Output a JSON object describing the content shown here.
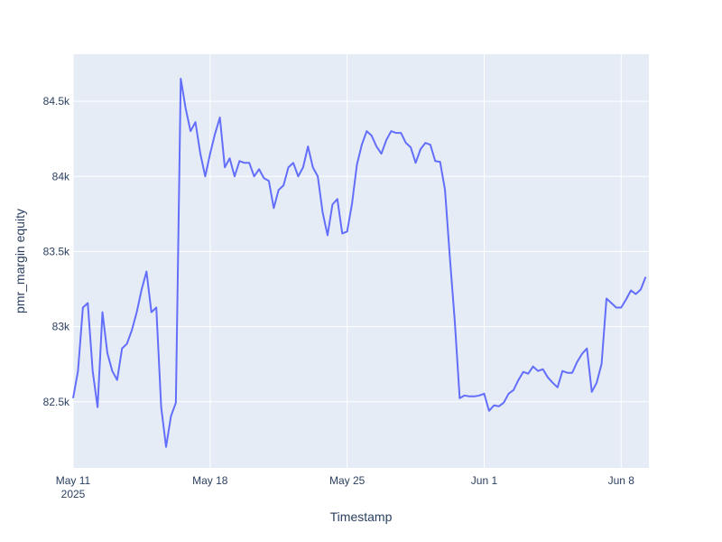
{
  "chart_data": {
    "type": "line",
    "x_label": "Timestamp",
    "y_label": "pmr_margin equity",
    "x": [
      "2025-05-11 00:00",
      "2025-05-11 06:00",
      "2025-05-11 12:00",
      "2025-05-11 18:00",
      "2025-05-12 00:00",
      "2025-05-12 06:00",
      "2025-05-12 12:00",
      "2025-05-12 18:00",
      "2025-05-13 00:00",
      "2025-05-13 06:00",
      "2025-05-13 12:00",
      "2025-05-13 18:00",
      "2025-05-14 00:00",
      "2025-05-14 06:00",
      "2025-05-14 12:00",
      "2025-05-14 18:00",
      "2025-05-15 00:00",
      "2025-05-15 06:00",
      "2025-05-15 12:00",
      "2025-05-15 18:00",
      "2025-05-16 00:00",
      "2025-05-16 06:00",
      "2025-05-16 12:00",
      "2025-05-16 18:00",
      "2025-05-17 00:00",
      "2025-05-17 06:00",
      "2025-05-17 12:00",
      "2025-05-17 18:00",
      "2025-05-18 00:00",
      "2025-05-18 06:00",
      "2025-05-18 12:00",
      "2025-05-18 18:00",
      "2025-05-19 00:00",
      "2025-05-19 06:00",
      "2025-05-19 12:00",
      "2025-05-19 18:00",
      "2025-05-20 00:00",
      "2025-05-20 06:00",
      "2025-05-20 12:00",
      "2025-05-20 18:00",
      "2025-05-21 00:00",
      "2025-05-21 06:00",
      "2025-05-21 12:00",
      "2025-05-21 18:00",
      "2025-05-22 00:00",
      "2025-05-22 06:00",
      "2025-05-22 12:00",
      "2025-05-22 18:00",
      "2025-05-23 00:00",
      "2025-05-23 06:00",
      "2025-05-23 12:00",
      "2025-05-23 18:00",
      "2025-05-24 00:00",
      "2025-05-24 06:00",
      "2025-05-24 12:00",
      "2025-05-24 18:00",
      "2025-05-25 00:00",
      "2025-05-25 06:00",
      "2025-05-25 12:00",
      "2025-05-25 18:00",
      "2025-05-26 00:00",
      "2025-05-26 06:00",
      "2025-05-26 12:00",
      "2025-05-26 18:00",
      "2025-05-27 00:00",
      "2025-05-27 06:00",
      "2025-05-27 12:00",
      "2025-05-27 18:00",
      "2025-05-28 00:00",
      "2025-05-28 06:00",
      "2025-05-28 12:00",
      "2025-05-28 18:00",
      "2025-05-29 00:00",
      "2025-05-29 06:00",
      "2025-05-29 12:00",
      "2025-05-29 18:00",
      "2025-05-30 00:00",
      "2025-05-30 06:00",
      "2025-05-30 12:00",
      "2025-05-30 18:00",
      "2025-05-31 00:00",
      "2025-05-31 06:00",
      "2025-05-31 12:00",
      "2025-05-31 18:00",
      "2025-06-01 00:00",
      "2025-06-01 06:00",
      "2025-06-01 12:00",
      "2025-06-01 18:00",
      "2025-06-02 00:00",
      "2025-06-02 06:00",
      "2025-06-02 12:00",
      "2025-06-02 18:00",
      "2025-06-03 00:00",
      "2025-06-03 06:00",
      "2025-06-03 12:00",
      "2025-06-03 18:00",
      "2025-06-04 00:00",
      "2025-06-04 06:00",
      "2025-06-04 12:00",
      "2025-06-04 18:00",
      "2025-06-05 00:00",
      "2025-06-05 06:00",
      "2025-06-05 12:00",
      "2025-06-05 18:00",
      "2025-06-06 00:00",
      "2025-06-06 06:00",
      "2025-06-06 12:00",
      "2025-06-06 18:00",
      "2025-06-07 00:00",
      "2025-06-07 06:00",
      "2025-06-07 12:00",
      "2025-06-07 18:00",
      "2025-06-08 00:00",
      "2025-06-08 06:00",
      "2025-06-08 12:00",
      "2025-06-08 18:00",
      "2025-06-09 00:00",
      "2025-06-09 06:00"
    ],
    "series": [
      {
        "name": "pmr_margin equity",
        "color": "#636efa",
        "values": [
          82524,
          82705,
          83127,
          83157,
          82705,
          82464,
          83096,
          82825,
          82705,
          82645,
          82855,
          82886,
          82976,
          83096,
          83247,
          83367,
          83096,
          83127,
          82464,
          82200,
          82404,
          82494,
          84650,
          84452,
          84301,
          84361,
          84151,
          84000,
          84151,
          84283,
          84392,
          84060,
          84120,
          84000,
          84102,
          84090,
          84090,
          84000,
          84048,
          83988,
          83970,
          83789,
          83910,
          83940,
          84060,
          84090,
          84000,
          84060,
          84199,
          84060,
          84000,
          83759,
          83608,
          83813,
          83849,
          83620,
          83633,
          83819,
          84078,
          84211,
          84301,
          84271,
          84199,
          84151,
          84241,
          84301,
          84289,
          84289,
          84223,
          84193,
          84090,
          84181,
          84223,
          84211,
          84102,
          84096,
          83910,
          83458,
          83036,
          82524,
          82542,
          82536,
          82536,
          82542,
          82554,
          82440,
          82476,
          82470,
          82494,
          82554,
          82578,
          82645,
          82699,
          82687,
          82735,
          82705,
          82717,
          82663,
          82627,
          82596,
          82705,
          82693,
          82693,
          82765,
          82819,
          82855,
          82566,
          82627,
          82753,
          83187,
          83157,
          83127,
          83127,
          83181,
          83241,
          83217,
          83247,
          83331
        ]
      }
    ],
    "xlim": [
      "2025-05-11 00:00",
      "2025-06-09 10:00"
    ],
    "xticks": [
      {
        "value": "2025-05-11 00:00",
        "label": "May 11\n2025"
      },
      {
        "value": "2025-05-18 00:00",
        "label": "May 18"
      },
      {
        "value": "2025-05-25 00:00",
        "label": "May 25"
      },
      {
        "value": "2025-06-01 00:00",
        "label": "Jun 1"
      },
      {
        "value": "2025-06-08 00:00",
        "label": "Jun 8"
      }
    ],
    "ylim": [
      82060,
      84813
    ],
    "yticks": [
      {
        "value": 82500,
        "label": "82.5k"
      },
      {
        "value": 83000,
        "label": "83k"
      },
      {
        "value": 83500,
        "label": "83.5k"
      },
      {
        "value": 84000,
        "label": "84k"
      },
      {
        "value": 84500,
        "label": "84.5k"
      }
    ],
    "grid": true
  }
}
